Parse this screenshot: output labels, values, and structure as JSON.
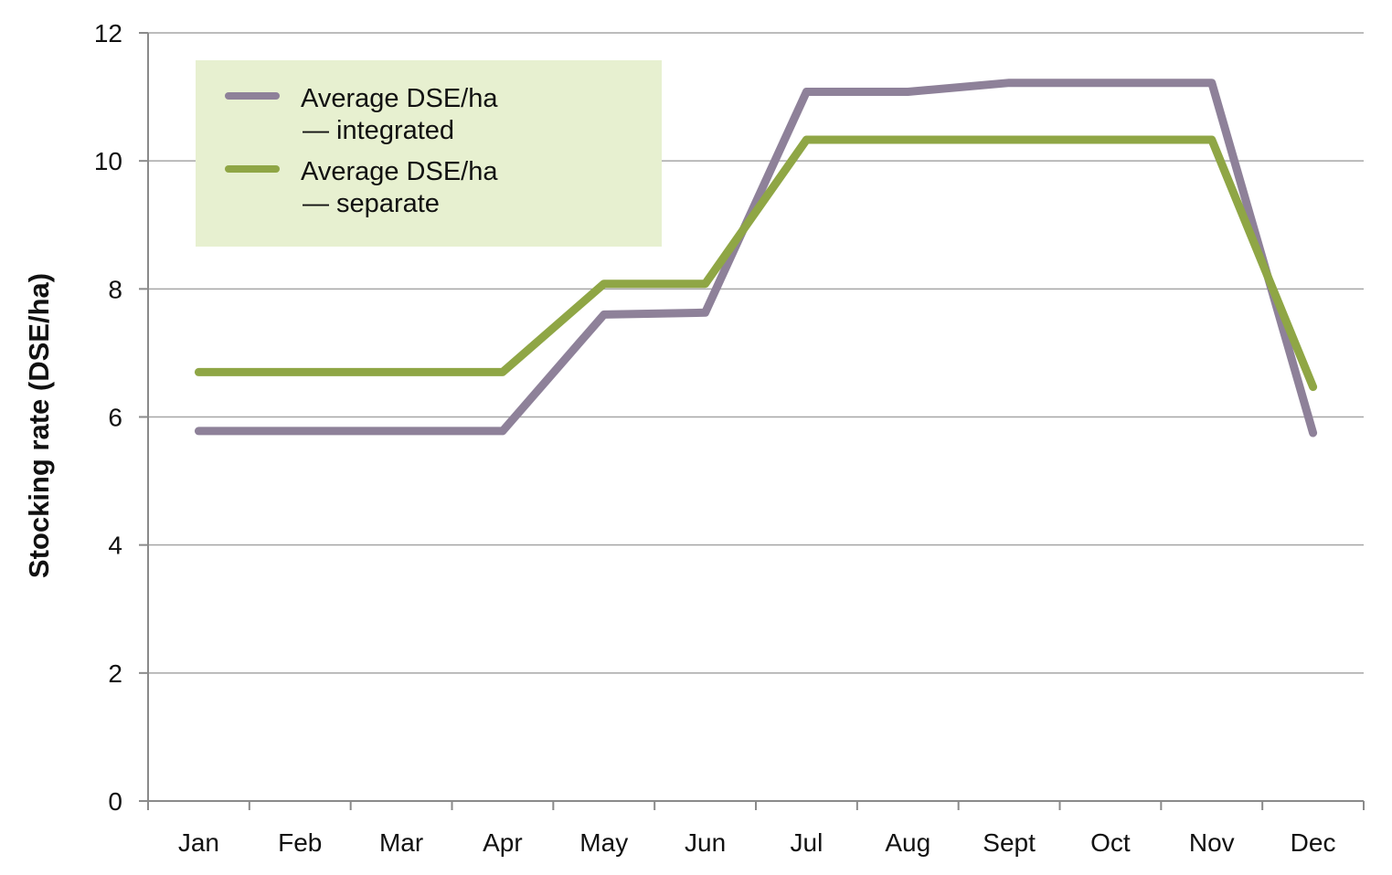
{
  "chart_data": {
    "type": "line",
    "title": "",
    "xlabel": "",
    "ylabel": "Stocking rate (DSE/ha)",
    "categories": [
      "Jan",
      "Feb",
      "Mar",
      "Apr",
      "May",
      "Jun",
      "Jul",
      "Aug",
      "Sept",
      "Oct",
      "Nov",
      "Dec"
    ],
    "ylim": [
      0,
      12
    ],
    "yticks": [
      0,
      2,
      4,
      6,
      8,
      10,
      12
    ],
    "grid": "horizontal",
    "legend_position": "top-left",
    "series": [
      {
        "name_line1": "Average DSE/ha",
        "name_line2": "— integrated",
        "color": "#8e8199",
        "values": [
          5.78,
          5.78,
          5.78,
          5.78,
          7.6,
          7.63,
          11.08,
          11.08,
          11.22,
          11.22,
          11.22,
          5.75
        ]
      },
      {
        "name_line1": "Average DSE/ha",
        "name_line2": "— separate",
        "color": "#8fa645",
        "values": [
          6.7,
          6.7,
          6.7,
          6.7,
          8.08,
          8.08,
          10.33,
          10.33,
          10.33,
          10.33,
          10.33,
          6.47
        ]
      }
    ],
    "legend_background": "#e7f0d0"
  }
}
